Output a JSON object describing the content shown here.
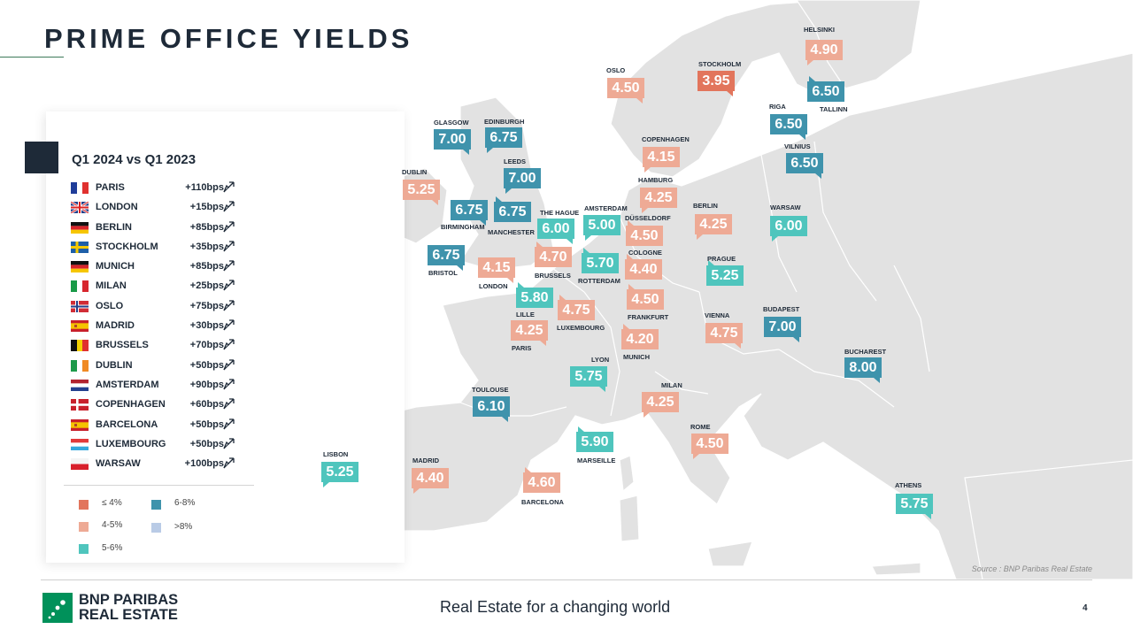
{
  "title": "PRIME OFFICE YIELDS",
  "panel": {
    "heading": "Q1 2024 vs Q1 2023",
    "rows": [
      {
        "city": "PARIS",
        "change": "+110bps",
        "flag": "fr"
      },
      {
        "city": "LONDON",
        "change": "+15bps",
        "flag": "uk"
      },
      {
        "city": "BERLIN",
        "change": "+85bps",
        "flag": "de"
      },
      {
        "city": "STOCKHOLM",
        "change": "+35bps",
        "flag": "se"
      },
      {
        "city": "MUNICH",
        "change": "+85bps",
        "flag": "de"
      },
      {
        "city": "MILAN",
        "change": "+25bps",
        "flag": "it"
      },
      {
        "city": "OSLO",
        "change": "+75bps",
        "flag": "no"
      },
      {
        "city": "MADRID",
        "change": "+30bps",
        "flag": "es"
      },
      {
        "city": "BRUSSELS",
        "change": "+70bps",
        "flag": "be"
      },
      {
        "city": "DUBLIN",
        "change": "+50bps",
        "flag": "ie"
      },
      {
        "city": "AMSTERDAM",
        "change": "+90bps",
        "flag": "nl"
      },
      {
        "city": "COPENHAGEN",
        "change": "+60bps",
        "flag": "dk"
      },
      {
        "city": "BARCELONA",
        "change": "+50bps",
        "flag": "es"
      },
      {
        "city": "LUXEMBOURG",
        "change": "+50bps",
        "flag": "lu"
      },
      {
        "city": "WARSAW",
        "change": "+100bps",
        "flag": "pl"
      }
    ]
  },
  "legend": [
    {
      "label": "≤ 4%",
      "color": "#e2755c"
    },
    {
      "label": "4-5%",
      "color": "#eeaa95"
    },
    {
      "label": "5-6%",
      "color": "#4fc5bd"
    },
    {
      "label": "6-8%",
      "color": "#3f93ac"
    },
    {
      "label": ">8%",
      "color": "#b9cbe6"
    }
  ],
  "cities": [
    {
      "name": "HELSINKI",
      "value": "4.90"
    },
    {
      "name": "STOCKHOLM",
      "value": "3.95"
    },
    {
      "name": "OSLO",
      "value": "4.50"
    },
    {
      "name": "TALLINN",
      "value": "6.50"
    },
    {
      "name": "RIGA",
      "value": "6.50"
    },
    {
      "name": "VILNIUS",
      "value": "6.50"
    },
    {
      "name": "GLASGOW",
      "value": "7.00"
    },
    {
      "name": "EDINBURGH",
      "value": "6.75"
    },
    {
      "name": "COPENHAGEN",
      "value": "4.15"
    },
    {
      "name": "LEEDS",
      "value": "7.00"
    },
    {
      "name": "DUBLIN",
      "value": "5.25"
    },
    {
      "name": "HAMBURG",
      "value": "4.25"
    },
    {
      "name": "BERLIN",
      "value": "4.25"
    },
    {
      "name": "WARSAW",
      "value": "6.00"
    },
    {
      "name": "BIRMINGHAM",
      "value": "6.75"
    },
    {
      "name": "MANCHESTER",
      "value": "6.75"
    },
    {
      "name": "THE HAGUE",
      "value": "6.00"
    },
    {
      "name": "AMSTERDAM",
      "value": "5.00"
    },
    {
      "name": "DÜSSELDORF",
      "value": "4.50"
    },
    {
      "name": "BRISTOL",
      "value": "6.75"
    },
    {
      "name": "LONDON",
      "value": "4.15"
    },
    {
      "name": "BRUSSELS",
      "value": "4.70"
    },
    {
      "name": "ROTTERDAM",
      "value": "5.70"
    },
    {
      "name": "COLOGNE",
      "value": "4.40"
    },
    {
      "name": "PRAGUE",
      "value": "5.25"
    },
    {
      "name": "LILLE",
      "value": "5.80"
    },
    {
      "name": "LUXEMBOURG",
      "value": "4.75"
    },
    {
      "name": "FRANKFURT",
      "value": "4.50"
    },
    {
      "name": "PARIS",
      "value": "4.25"
    },
    {
      "name": "MUNICH",
      "value": "4.20"
    },
    {
      "name": "VIENNA",
      "value": "4.75"
    },
    {
      "name": "BUDAPEST",
      "value": "7.00"
    },
    {
      "name": "BUCHAREST",
      "value": "8.00"
    },
    {
      "name": "LYON",
      "value": "5.75"
    },
    {
      "name": "TOULOUSE",
      "value": "6.10"
    },
    {
      "name": "MILAN",
      "value": "4.25"
    },
    {
      "name": "MARSEILLE",
      "value": "5.90"
    },
    {
      "name": "ROME",
      "value": "4.50"
    },
    {
      "name": "LISBON",
      "value": "5.25"
    },
    {
      "name": "MADRID",
      "value": "4.40"
    },
    {
      "name": "BARCELONA",
      "value": "4.60"
    },
    {
      "name": "ATHENS",
      "value": "5.75"
    }
  ],
  "source": "Source : BNP Paribas Real Estate",
  "footer": {
    "logo_line1": "BNP PARIBAS",
    "logo_line2": "REAL ESTATE",
    "tagline": "Real Estate for a changing world",
    "page": "4"
  }
}
